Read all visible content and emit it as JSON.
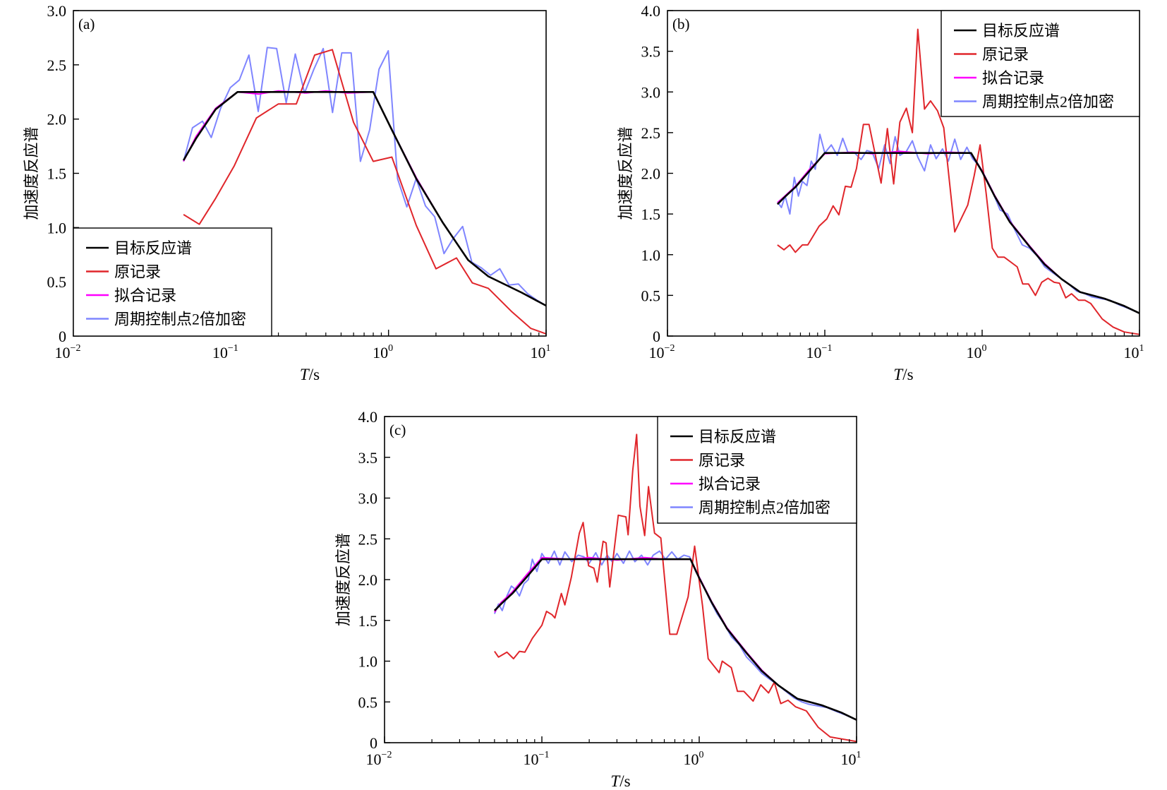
{
  "colors": {
    "target": "#000000",
    "original": "#e0262b",
    "fitted": "#ff00ff",
    "densified": "#7f85ff",
    "axis": "#000000"
  },
  "chart_data": [
    {
      "type": "line",
      "panel_label": "(a)",
      "xlabel_italic": "T",
      "xlabel_unit": "/s",
      "ylabel": "加速度反应谱",
      "xscale": "log",
      "xlim": [
        0.01,
        10
      ],
      "ylim": [
        0,
        3.0
      ],
      "xticks": [
        {
          "base": "10",
          "exp": "−2"
        },
        {
          "base": "10",
          "exp": "−1"
        },
        {
          "base": "10",
          "exp": "0"
        },
        {
          "base": "10",
          "exp": "1"
        }
      ],
      "yticks": [
        "0",
        "0.5",
        "1.0",
        "1.5",
        "2.0",
        "2.5",
        "3.0"
      ],
      "legend_position": "bottom-left",
      "legend": [
        "目标反应谱",
        "原记录",
        "拟合记录",
        "周期控制点2倍加密"
      ],
      "series": [
        {
          "name": "目标反应谱",
          "key": "target",
          "x": [
            0.05,
            0.06,
            0.08,
            0.11,
            0.8,
            1.05,
            1.5,
            2.2,
            3.2,
            4.3,
            7,
            10
          ],
          "y": [
            1.62,
            1.82,
            2.09,
            2.25,
            2.25,
            1.9,
            1.45,
            1.05,
            0.7,
            0.55,
            0.4,
            0.28
          ]
        },
        {
          "name": "原记录",
          "key": "original",
          "x": [
            0.05,
            0.063,
            0.08,
            0.105,
            0.145,
            0.2,
            0.26,
            0.34,
            0.44,
            0.6,
            0.8,
            1.05,
            1.5,
            2.0,
            2.7,
            3.4,
            4.3,
            6,
            8,
            10
          ],
          "y": [
            1.12,
            1.03,
            1.27,
            1.57,
            2.01,
            2.14,
            2.14,
            2.59,
            2.64,
            1.97,
            1.61,
            1.65,
            1.02,
            0.62,
            0.72,
            0.49,
            0.44,
            0.23,
            0.07,
            0.02
          ]
        },
        {
          "name": "拟合记录",
          "key": "fitted",
          "x": [
            0.05,
            0.06,
            0.08,
            0.11,
            0.15,
            0.2,
            0.3,
            0.4,
            0.55,
            0.8,
            1.05,
            1.5,
            2.2,
            3.2,
            4.3,
            7,
            10
          ],
          "y": [
            1.61,
            1.84,
            2.1,
            2.25,
            2.23,
            2.26,
            2.24,
            2.26,
            2.24,
            2.25,
            1.9,
            1.46,
            1.05,
            0.7,
            0.55,
            0.4,
            0.28
          ]
        },
        {
          "name": "周期控制点2倍加密",
          "key": "densified",
          "x": [
            0.05,
            0.057,
            0.066,
            0.075,
            0.086,
            0.099,
            0.113,
            0.13,
            0.149,
            0.17,
            0.195,
            0.224,
            0.256,
            0.293,
            0.336,
            0.385,
            0.441,
            0.505,
            0.579,
            0.663,
            0.759,
            0.87,
            0.996,
            1.141,
            1.307,
            1.497,
            1.715,
            1.964,
            2.25,
            2.577,
            2.952,
            3.382,
            3.874,
            4.437,
            5.083,
            5.822,
            6.669,
            7.64,
            8.751,
            10.0
          ],
          "y": [
            1.61,
            1.92,
            1.98,
            1.83,
            2.1,
            2.29,
            2.36,
            2.59,
            2.07,
            2.66,
            2.65,
            2.15,
            2.6,
            2.24,
            2.46,
            2.65,
            2.06,
            2.61,
            2.61,
            1.61,
            1.9,
            2.46,
            2.63,
            1.45,
            1.19,
            1.45,
            1.2,
            1.1,
            0.76,
            0.9,
            1.01,
            0.68,
            0.63,
            0.56,
            0.62,
            0.47,
            0.48,
            0.39,
            0.33,
            0.28
          ]
        }
      ]
    },
    {
      "type": "line",
      "panel_label": "(b)",
      "xlabel_italic": "T",
      "xlabel_unit": "/s",
      "ylabel": "加速度反应谱",
      "xscale": "log",
      "xlim": [
        0.01,
        10
      ],
      "ylim": [
        0,
        4.0
      ],
      "xticks": [
        {
          "base": "10",
          "exp": "−2"
        },
        {
          "base": "10",
          "exp": "−1"
        },
        {
          "base": "10",
          "exp": "0"
        },
        {
          "base": "10",
          "exp": "1"
        }
      ],
      "yticks": [
        "0",
        "0.5",
        "1.0",
        "1.5",
        "2.0",
        "2.5",
        "3.0",
        "3.5",
        "4.0"
      ],
      "legend_position": "top-right",
      "legend": [
        "目标反应谱",
        "原记录",
        "拟合记录",
        "周期控制点2倍加密"
      ],
      "series": [
        {
          "name": "目标反应谱",
          "key": "target",
          "x": [
            0.05,
            0.055,
            0.065,
            0.08,
            0.1,
            0.85,
            1.0,
            1.2,
            1.5,
            2.0,
            2.5,
            3.2,
            4.2,
            6,
            8,
            10
          ],
          "y": [
            1.62,
            1.7,
            1.83,
            2.03,
            2.25,
            2.25,
            2.02,
            1.72,
            1.4,
            1.1,
            0.88,
            0.7,
            0.54,
            0.46,
            0.37,
            0.28
          ]
        },
        {
          "name": "原记录",
          "key": "original",
          "x": [
            0.05,
            0.055,
            0.06,
            0.065,
            0.072,
            0.078,
            0.092,
            0.103,
            0.113,
            0.123,
            0.135,
            0.147,
            0.159,
            0.176,
            0.191,
            0.228,
            0.25,
            0.274,
            0.3,
            0.33,
            0.36,
            0.39,
            0.43,
            0.47,
            0.52,
            0.57,
            0.67,
            0.81,
            0.89,
            0.97,
            1.06,
            1.16,
            1.26,
            1.38,
            1.67,
            1.81,
            1.97,
            2.18,
            2.39,
            2.62,
            2.87,
            3.1,
            3.4,
            3.7,
            4.1,
            4.5,
            4.9,
            5.8,
            6.8,
            8.0,
            10
          ],
          "y": [
            1.12,
            1.06,
            1.12,
            1.03,
            1.12,
            1.12,
            1.35,
            1.44,
            1.6,
            1.49,
            1.84,
            1.83,
            2.06,
            2.6,
            2.6,
            1.88,
            2.55,
            1.87,
            2.63,
            2.8,
            2.5,
            3.77,
            2.79,
            2.89,
            2.77,
            2.56,
            1.28,
            1.61,
            1.97,
            2.35,
            1.76,
            1.08,
            0.97,
            0.97,
            0.85,
            0.64,
            0.64,
            0.5,
            0.66,
            0.71,
            0.66,
            0.65,
            0.47,
            0.52,
            0.44,
            0.44,
            0.4,
            0.21,
            0.11,
            0.05,
            0.02
          ]
        },
        {
          "name": "拟合记录",
          "key": "fitted",
          "x": [
            0.05,
            0.055,
            0.065,
            0.08,
            0.1,
            0.15,
            0.2,
            0.3,
            0.45,
            0.6,
            0.85,
            1.0,
            1.2,
            1.5,
            2.0,
            2.5,
            3.2,
            4.2,
            6,
            8,
            10
          ],
          "y": [
            1.64,
            1.71,
            1.84,
            2.05,
            2.24,
            2.26,
            2.24,
            2.27,
            2.24,
            2.26,
            2.25,
            2.03,
            1.73,
            1.41,
            1.11,
            0.89,
            0.7,
            0.54,
            0.46,
            0.37,
            0.28
          ]
        },
        {
          "name": "周期控制点2倍加密",
          "key": "densified",
          "x": [
            0.05,
            0.053,
            0.056,
            0.06,
            0.064,
            0.068,
            0.072,
            0.077,
            0.082,
            0.087,
            0.093,
            0.1,
            0.11,
            0.12,
            0.13,
            0.14,
            0.155,
            0.17,
            0.185,
            0.2,
            0.22,
            0.24,
            0.26,
            0.28,
            0.3,
            0.33,
            0.36,
            0.39,
            0.43,
            0.47,
            0.51,
            0.56,
            0.61,
            0.67,
            0.73,
            0.8,
            0.87,
            0.95,
            1.05,
            1.15,
            1.3,
            1.45,
            1.6,
            1.8,
            2.0,
            2.25,
            2.5,
            2.8,
            3.1,
            3.5,
            4.0,
            4.5,
            5.0,
            5.7,
            6.5,
            7.5,
            8.5,
            10
          ],
          "y": [
            1.65,
            1.58,
            1.72,
            1.5,
            1.95,
            1.72,
            1.9,
            1.85,
            2.15,
            2.05,
            2.48,
            2.25,
            2.35,
            2.22,
            2.43,
            2.26,
            2.25,
            2.17,
            2.28,
            2.26,
            2.06,
            2.35,
            2.12,
            2.45,
            2.22,
            2.27,
            2.4,
            2.2,
            2.03,
            2.35,
            2.18,
            2.3,
            2.15,
            2.42,
            2.17,
            2.32,
            2.18,
            2.1,
            1.95,
            1.8,
            1.55,
            1.5,
            1.32,
            1.12,
            1.08,
            0.98,
            0.85,
            0.78,
            0.72,
            0.65,
            0.55,
            0.52,
            0.48,
            0.46,
            0.44,
            0.38,
            0.34,
            0.28
          ]
        }
      ]
    },
    {
      "type": "line",
      "panel_label": "(c)",
      "xlabel_italic": "T",
      "xlabel_unit": "/s",
      "ylabel": "加速度反应谱",
      "xscale": "log",
      "xlim": [
        0.01,
        10
      ],
      "ylim": [
        0,
        4.0
      ],
      "xticks": [
        {
          "base": "10",
          "exp": "−2"
        },
        {
          "base": "10",
          "exp": "−1"
        },
        {
          "base": "10",
          "exp": "0"
        },
        {
          "base": "10",
          "exp": "1"
        }
      ],
      "yticks": [
        "0",
        "0.5",
        "1.0",
        "1.5",
        "2.0",
        "2.5",
        "3.0",
        "3.5",
        "4.0"
      ],
      "legend_position": "top-right",
      "legend": [
        "目标反应谱",
        "原记录",
        "拟合记录",
        "周期控制点2倍加密"
      ],
      "series": [
        {
          "name": "目标反应谱",
          "key": "target",
          "x": [
            0.05,
            0.055,
            0.065,
            0.08,
            0.1,
            0.88,
            1.0,
            1.2,
            1.5,
            2.0,
            2.5,
            3.2,
            4.2,
            6,
            8,
            10
          ],
          "y": [
            1.62,
            1.7,
            1.83,
            2.03,
            2.25,
            2.25,
            2.02,
            1.72,
            1.4,
            1.1,
            0.88,
            0.7,
            0.54,
            0.46,
            0.37,
            0.28
          ]
        },
        {
          "name": "原记录",
          "key": "original",
          "x": [
            0.05,
            0.053,
            0.06,
            0.066,
            0.072,
            0.078,
            0.087,
            0.1,
            0.107,
            0.116,
            0.121,
            0.133,
            0.14,
            0.154,
            0.173,
            0.183,
            0.198,
            0.214,
            0.225,
            0.245,
            0.256,
            0.27,
            0.306,
            0.342,
            0.353,
            0.378,
            0.4,
            0.42,
            0.45,
            0.476,
            0.52,
            0.57,
            0.65,
            0.72,
            0.8,
            0.85,
            0.935,
            1.05,
            1.14,
            1.34,
            1.4,
            1.6,
            1.75,
            1.92,
            2.2,
            2.46,
            2.76,
            3.0,
            3.3,
            3.67,
            4.1,
            4.8,
            5.7,
            6.8,
            10
          ],
          "y": [
            1.12,
            1.05,
            1.11,
            1.03,
            1.12,
            1.11,
            1.28,
            1.44,
            1.61,
            1.57,
            1.53,
            1.83,
            1.69,
            2.03,
            2.57,
            2.7,
            2.17,
            2.14,
            1.97,
            2.47,
            2.45,
            1.91,
            2.79,
            2.77,
            2.55,
            3.34,
            3.78,
            2.9,
            2.54,
            3.14,
            2.57,
            2.51,
            1.33,
            1.33,
            1.62,
            1.79,
            2.41,
            1.68,
            1.03,
            0.86,
            1.0,
            0.92,
            0.63,
            0.63,
            0.51,
            0.71,
            0.61,
            0.74,
            0.48,
            0.52,
            0.44,
            0.39,
            0.19,
            0.07,
            0.015
          ]
        },
        {
          "name": "拟合记录",
          "key": "fitted",
          "x": [
            0.05,
            0.055,
            0.065,
            0.08,
            0.1,
            0.15,
            0.2,
            0.3,
            0.45,
            0.6,
            0.88,
            1.0,
            1.2,
            1.5,
            2.0,
            2.5,
            3.2,
            4.2,
            6,
            8,
            10
          ],
          "y": [
            1.6,
            1.72,
            1.85,
            2.06,
            2.27,
            2.25,
            2.27,
            2.24,
            2.27,
            2.25,
            2.25,
            2.03,
            1.73,
            1.41,
            1.11,
            0.89,
            0.7,
            0.54,
            0.46,
            0.37,
            0.28
          ]
        },
        {
          "name": "周期控制点2倍加密",
          "key": "densified",
          "x": [
            0.05,
            0.053,
            0.056,
            0.06,
            0.064,
            0.068,
            0.072,
            0.077,
            0.082,
            0.087,
            0.093,
            0.1,
            0.11,
            0.12,
            0.13,
            0.14,
            0.155,
            0.17,
            0.185,
            0.2,
            0.22,
            0.24,
            0.26,
            0.28,
            0.3,
            0.33,
            0.36,
            0.39,
            0.43,
            0.47,
            0.51,
            0.56,
            0.61,
            0.67,
            0.73,
            0.8,
            0.87,
            0.95,
            1.05,
            1.15,
            1.3,
            1.45,
            1.6,
            1.8,
            2.0,
            2.25,
            2.5,
            2.8,
            3.1,
            3.5,
            4.0,
            4.5,
            5.0,
            5.7,
            6.5,
            7.5,
            8.5,
            10
          ],
          "y": [
            1.58,
            1.7,
            1.62,
            1.8,
            1.92,
            1.88,
            1.8,
            1.95,
            2.0,
            2.25,
            2.1,
            2.32,
            2.2,
            2.35,
            2.18,
            2.34,
            2.22,
            2.3,
            2.28,
            2.2,
            2.33,
            2.18,
            2.3,
            2.22,
            2.32,
            2.2,
            2.35,
            2.22,
            2.3,
            2.18,
            2.3,
            2.35,
            2.25,
            2.34,
            2.25,
            2.3,
            2.28,
            2.1,
            1.95,
            1.78,
            1.58,
            1.45,
            1.3,
            1.2,
            1.05,
            0.95,
            0.85,
            0.78,
            0.72,
            0.64,
            0.55,
            0.5,
            0.47,
            0.45,
            0.43,
            0.38,
            0.34,
            0.28
          ]
        }
      ]
    }
  ]
}
